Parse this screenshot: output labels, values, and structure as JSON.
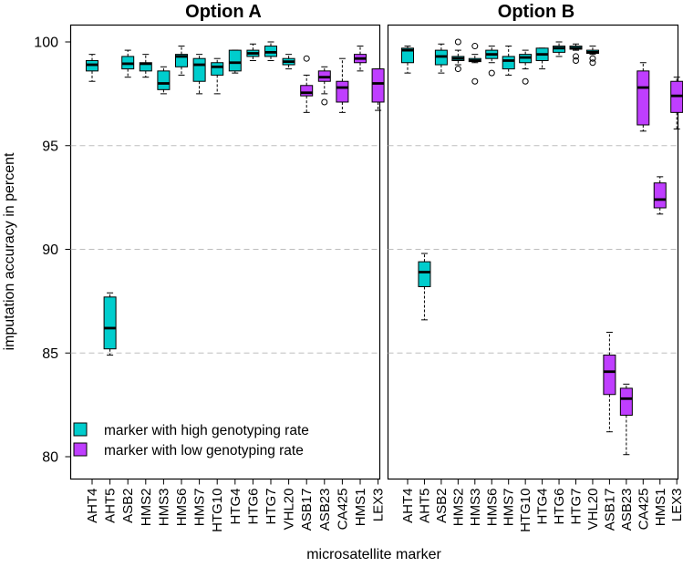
{
  "colors": {
    "high": "#00CDCD",
    "low": "#BF3EFF"
  },
  "chart_data": [
    {
      "type": "boxplot",
      "title": "Option A",
      "ylabel": "imputation accuracy in percent",
      "xlabel": "microsatellite marker",
      "ylim": [
        79.5,
        101
      ],
      "yticks": [
        80,
        85,
        90,
        95,
        100
      ],
      "gridlines": [
        85,
        90,
        95
      ],
      "categories": [
        "AHT4",
        "AHT5",
        "ASB2",
        "HMS2",
        "HMS3",
        "HMS6",
        "HMS7",
        "HTG10",
        "HTG4",
        "HTG6",
        "HTG7",
        "VHL20",
        "ASB17",
        "ASB23",
        "CA425",
        "HMS1",
        "LEX3"
      ],
      "group": [
        "high",
        "high",
        "high",
        "high",
        "high",
        "high",
        "high",
        "high",
        "high",
        "high",
        "high",
        "high",
        "low",
        "low",
        "low",
        "low",
        "low"
      ],
      "boxes": [
        {
          "min": 98.1,
          "q1": 98.6,
          "median": 98.9,
          "q3": 99.1,
          "max": 99.4,
          "outliers": []
        },
        {
          "min": 84.9,
          "q1": 85.2,
          "median": 86.2,
          "q3": 87.7,
          "max": 87.9,
          "outliers": []
        },
        {
          "min": 98.3,
          "q1": 98.7,
          "median": 98.95,
          "q3": 99.3,
          "max": 99.6,
          "outliers": []
        },
        {
          "min": 98.3,
          "q1": 98.6,
          "median": 98.95,
          "q3": 99.0,
          "max": 99.4,
          "outliers": []
        },
        {
          "min": 97.5,
          "q1": 97.7,
          "median": 98.0,
          "q3": 98.6,
          "max": 98.8,
          "outliers": []
        },
        {
          "min": 98.4,
          "q1": 98.8,
          "median": 99.3,
          "q3": 99.4,
          "max": 99.8,
          "outliers": []
        },
        {
          "min": 97.5,
          "q1": 98.1,
          "median": 98.9,
          "q3": 99.2,
          "max": 99.4,
          "outliers": []
        },
        {
          "min": 97.5,
          "q1": 98.4,
          "median": 98.8,
          "q3": 99.0,
          "max": 99.2,
          "outliers": []
        },
        {
          "min": 98.5,
          "q1": 98.6,
          "median": 99.0,
          "q3": 99.6,
          "max": 99.6,
          "outliers": []
        },
        {
          "min": 99.1,
          "q1": 99.3,
          "median": 99.45,
          "q3": 99.6,
          "max": 99.9,
          "outliers": []
        },
        {
          "min": 99.1,
          "q1": 99.3,
          "median": 99.5,
          "q3": 99.8,
          "max": 100.0,
          "outliers": []
        },
        {
          "min": 98.7,
          "q1": 98.9,
          "median": 99.05,
          "q3": 99.2,
          "max": 99.4,
          "outliers": []
        },
        {
          "min": 96.6,
          "q1": 97.4,
          "median": 97.55,
          "q3": 97.9,
          "max": 98.4,
          "outliers": [
            99.2
          ]
        },
        {
          "min": 97.5,
          "q1": 98.1,
          "median": 98.3,
          "q3": 98.6,
          "max": 98.8,
          "outliers": [
            97.1
          ]
        },
        {
          "min": 96.6,
          "q1": 97.1,
          "median": 97.8,
          "q3": 98.1,
          "max": 99.2,
          "outliers": []
        },
        {
          "min": 98.6,
          "q1": 99.0,
          "median": 99.2,
          "q3": 99.4,
          "max": 99.8,
          "outliers": []
        },
        {
          "min": 96.7,
          "q1": 97.1,
          "median": 98.0,
          "q3": 98.7,
          "max": 98.7,
          "outliers": []
        }
      ]
    },
    {
      "type": "boxplot",
      "title": "Option B",
      "xlabel": "microsatellite marker",
      "ylim": [
        79.5,
        101
      ],
      "gridlines": [
        85,
        90,
        95
      ],
      "categories": [
        "AHT4",
        "AHT5",
        "ASB2",
        "HMS2",
        "HMS3",
        "HMS6",
        "HMS7",
        "HTG10",
        "HTG4",
        "HTG6",
        "HTG7",
        "VHL20",
        "ASB17",
        "ASB23",
        "CA425",
        "HMS1",
        "LEX3"
      ],
      "group": [
        "high",
        "high",
        "high",
        "high",
        "high",
        "high",
        "high",
        "high",
        "high",
        "high",
        "high",
        "high",
        "low",
        "low",
        "low",
        "low",
        "low"
      ],
      "boxes": [
        {
          "min": 98.5,
          "q1": 99.0,
          "median": 99.6,
          "q3": 99.7,
          "max": 99.8,
          "outliers": []
        },
        {
          "min": 86.6,
          "q1": 88.2,
          "median": 88.9,
          "q3": 89.4,
          "max": 89.8,
          "outliers": []
        },
        {
          "min": 98.5,
          "q1": 98.9,
          "median": 99.3,
          "q3": 99.6,
          "max": 99.9,
          "outliers": []
        },
        {
          "min": 98.9,
          "q1": 99.1,
          "median": 99.2,
          "q3": 99.3,
          "max": 99.6,
          "outliers": [
            100.0,
            98.7
          ]
        },
        {
          "min": 99.0,
          "q1": 99.05,
          "median": 99.1,
          "q3": 99.2,
          "max": 99.4,
          "outliers": [
            99.8,
            98.1
          ]
        },
        {
          "min": 99.0,
          "q1": 99.2,
          "median": 99.4,
          "q3": 99.6,
          "max": 99.8,
          "outliers": [
            98.5
          ]
        },
        {
          "min": 98.4,
          "q1": 98.7,
          "median": 99.1,
          "q3": 99.3,
          "max": 99.8,
          "outliers": []
        },
        {
          "min": 98.7,
          "q1": 99.0,
          "median": 99.25,
          "q3": 99.4,
          "max": 99.6,
          "outliers": [
            98.1
          ]
        },
        {
          "min": 98.7,
          "q1": 99.1,
          "median": 99.4,
          "q3": 99.7,
          "max": 99.7,
          "outliers": []
        },
        {
          "min": 99.3,
          "q1": 99.5,
          "median": 99.7,
          "q3": 99.8,
          "max": 100.0,
          "outliers": []
        },
        {
          "min": 99.6,
          "q1": 99.65,
          "median": 99.7,
          "q3": 99.8,
          "max": 99.9,
          "outliers": [
            99.3,
            99.1
          ]
        },
        {
          "min": 99.4,
          "q1": 99.45,
          "median": 99.5,
          "q3": 99.6,
          "max": 99.8,
          "outliers": [
            99.2,
            99.0
          ]
        },
        {
          "min": 81.2,
          "q1": 83.0,
          "median": 84.1,
          "q3": 84.9,
          "max": 86.0,
          "outliers": []
        },
        {
          "min": 80.1,
          "q1": 82.0,
          "median": 82.8,
          "q3": 83.3,
          "max": 83.5,
          "outliers": []
        },
        {
          "min": 95.7,
          "q1": 96.0,
          "median": 97.8,
          "q3": 98.6,
          "max": 99.0,
          "outliers": []
        },
        {
          "min": 91.7,
          "q1": 92.0,
          "median": 92.4,
          "q3": 93.2,
          "max": 93.5,
          "outliers": []
        },
        {
          "min": 95.8,
          "q1": 96.6,
          "median": 97.4,
          "q3": 98.1,
          "max": 98.3,
          "outliers": []
        }
      ]
    }
  ],
  "legend": {
    "position": "bottom-left",
    "items": [
      {
        "key": "high",
        "label": "marker with high genotyping rate"
      },
      {
        "key": "low",
        "label": "marker with low genotyping rate"
      }
    ]
  }
}
